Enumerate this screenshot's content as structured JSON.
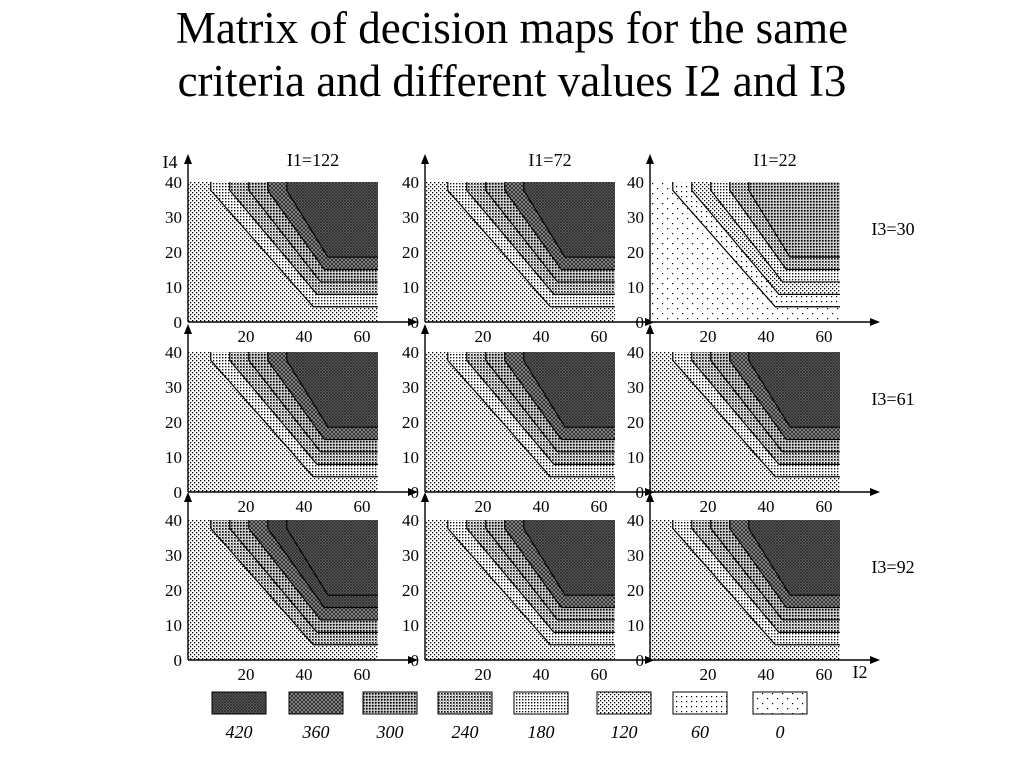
{
  "title_lines": [
    "Matrix of decision maps for the same",
    "criteria and different values I2 and I3"
  ],
  "axis": {
    "y_label": "I4",
    "x_label": "I2",
    "y_ticks": [
      "0",
      "10",
      "20",
      "30",
      "40"
    ],
    "x_ticks": [
      "20",
      "40",
      "60"
    ]
  },
  "column_headers": [
    "I1=122",
    "I1=72",
    "I1=22"
  ],
  "row_labels": [
    "I3=30",
    "I3=61",
    "I3=92"
  ],
  "legend": {
    "levels": [
      "420",
      "360",
      "300",
      "240",
      "180",
      "120",
      "60",
      "0"
    ]
  }
}
